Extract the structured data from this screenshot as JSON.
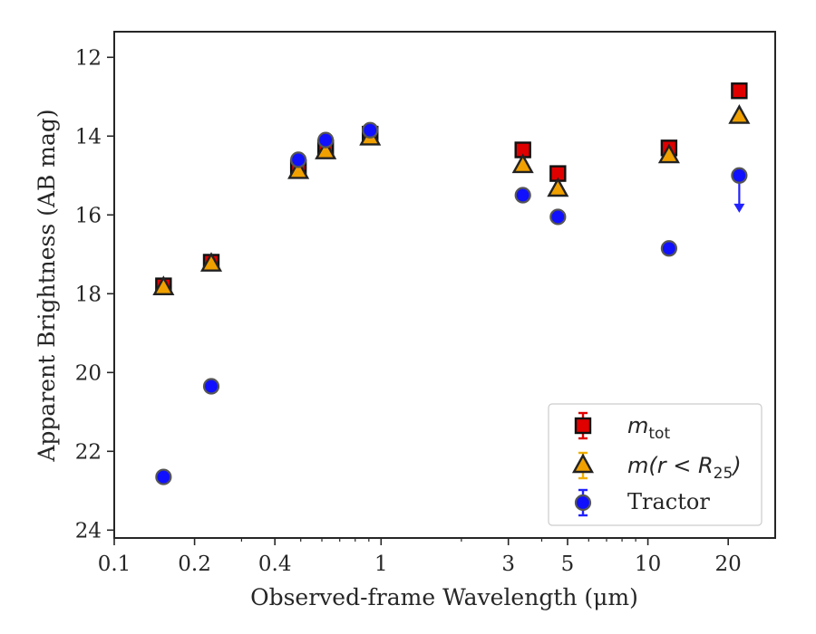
{
  "chart_data": {
    "type": "scatter",
    "xlabel": "Observed-frame Wavelength (μm)",
    "ylabel": "Apparent Brightness (AB mag)",
    "x_scale": "log",
    "xlim": [
      0.1,
      30
    ],
    "ylim": [
      24.2,
      11.35
    ],
    "y_inverted": true,
    "x_ticks": [
      0.1,
      0.2,
      0.4,
      1,
      3,
      5,
      10,
      20
    ],
    "x_tick_labels": [
      "0.1",
      "0.2",
      "0.4",
      "1",
      "3",
      "5",
      "10",
      "20"
    ],
    "y_ticks": [
      12,
      14,
      16,
      18,
      20,
      22,
      24
    ],
    "y_tick_labels": [
      "12",
      "14",
      "16",
      "18",
      "20",
      "22",
      "24"
    ],
    "grid": false,
    "legend_position": "lower-right",
    "series": [
      {
        "name": "m_tot",
        "legend_main": "m",
        "legend_sub": "tot",
        "marker": "square",
        "color": "#e00000",
        "x": [
          0.153,
          0.231,
          0.49,
          0.62,
          0.91,
          3.4,
          4.6,
          12.0,
          22.0
        ],
        "y": [
          17.8,
          17.2,
          14.8,
          14.3,
          13.95,
          14.35,
          14.95,
          14.3,
          12.85
        ]
      },
      {
        "name": "m(r < R_25)",
        "legend_main": "m(r < R",
        "legend_sub": "25",
        "legend_close": ")",
        "marker": "triangle",
        "color": "#f0a000",
        "x": [
          0.153,
          0.231,
          0.49,
          0.62,
          0.91,
          3.4,
          4.6,
          12.0,
          22.0
        ],
        "y": [
          17.85,
          17.25,
          14.9,
          14.4,
          14.05,
          14.75,
          15.35,
          14.5,
          13.5
        ]
      },
      {
        "name": "Tractor",
        "legend_main": "Tractor",
        "marker": "circle",
        "color": "#1010ff",
        "x": [
          0.153,
          0.231,
          0.49,
          0.62,
          0.91,
          3.4,
          4.6,
          12.0,
          22.0
        ],
        "y": [
          22.65,
          20.35,
          14.6,
          14.1,
          13.85,
          15.5,
          16.05,
          16.85,
          15.0
        ],
        "upper_limit_at_x": 22.0,
        "upper_limit_to_y": 15.9
      }
    ]
  }
}
